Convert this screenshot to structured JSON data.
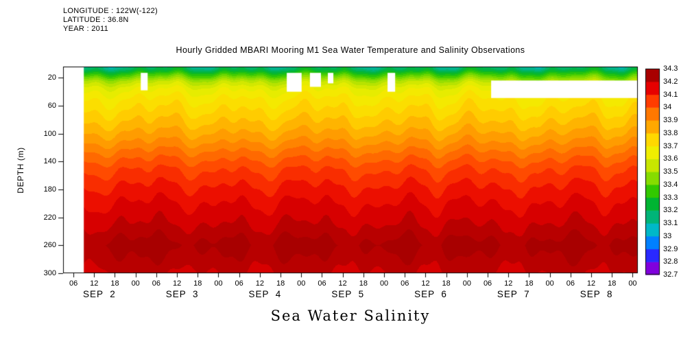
{
  "header": {
    "longitude": "LONGITUDE : 122W(-122)",
    "latitude": "LATITUDE : 36.8N",
    "year": "YEAR : 2011"
  },
  "title": "Hourly Gridded MBARI Mooring M1 Sea Water Temperature and Salinity Observations",
  "footer_label": "Sea Water Salinity",
  "chart_data": {
    "type": "heatmap",
    "title": "Hourly Gridded MBARI Mooring M1 Sea Water Temperature and Salinity Observations",
    "xlabel": "Sea Water Salinity",
    "ylabel": "DEPTH (m)",
    "ylim": [
      4,
      300
    ],
    "y_ticks": [
      20,
      60,
      100,
      140,
      180,
      220,
      260,
      300
    ],
    "t_start_hour": 3,
    "t_end_hour": 169.5,
    "x_hour_tick_labels": [
      "06",
      "12",
      "18",
      "00"
    ],
    "x_hour_tick_start": 6,
    "x_hour_tick_step": 6,
    "x_hour_tick_count": 28,
    "days": [
      "SEP  2",
      "SEP  3",
      "SEP  4",
      "SEP  5",
      "SEP  6",
      "SEP  7",
      "SEP  8"
    ],
    "grid": false,
    "legend_position": "right-colorbar",
    "colorbar": {
      "ticks": [
        34.3,
        34.2,
        34.1,
        34,
        33.9,
        33.8,
        33.7,
        33.6,
        33.5,
        33.4,
        33.3,
        33.2,
        33.1,
        33,
        32.9,
        32.8,
        32.7
      ],
      "vmin": 32.7,
      "vmax": 34.3,
      "step": 0.1,
      "colors_bottom_to_top": [
        "#8000dd",
        "#2929ff",
        "#0080ff",
        "#00b8c8",
        "#00b478",
        "#00b432",
        "#32c800",
        "#86dc00",
        "#c8e600",
        "#f0ee00",
        "#ffd800",
        "#ffa800",
        "#ff7800",
        "#ff3c00",
        "#e60000",
        "#a80000"
      ]
    },
    "profile": {
      "depths": [
        0,
        8,
        15,
        25,
        35,
        50,
        70,
        90,
        110,
        130,
        150,
        175,
        200,
        225,
        245,
        260,
        275,
        300
      ],
      "salinity": [
        33.08,
        33.15,
        33.3,
        33.48,
        33.58,
        33.65,
        33.71,
        33.77,
        33.84,
        33.92,
        33.99,
        34.05,
        34.1,
        34.14,
        34.18,
        34.22,
        34.19,
        34.15
      ]
    },
    "amplitude": {
      "depths": [
        0,
        20,
        40,
        80,
        150,
        230,
        260,
        300
      ],
      "values": [
        0.12,
        0.09,
        0.06,
        0.05,
        0.04,
        0.035,
        0.05,
        0.03
      ]
    },
    "contour_interval": 0.05,
    "missing_data_regions": [
      {
        "t0": 3,
        "t1": 9,
        "d0": 4,
        "d1": 300
      },
      {
        "t0": 25.5,
        "t1": 27.5,
        "d0": 13,
        "d1": 38
      },
      {
        "t0": 67.8,
        "t1": 72.1,
        "d0": 13,
        "d1": 40
      },
      {
        "t0": 74.5,
        "t1": 77.7,
        "d0": 13,
        "d1": 33
      },
      {
        "t0": 79.7,
        "t1": 81.3,
        "d0": 13,
        "d1": 28
      },
      {
        "t0": 97.0,
        "t1": 99.2,
        "d0": 13,
        "d1": 40
      },
      {
        "t0": 127,
        "t1": 169.5,
        "d0": 24,
        "d1": 49
      }
    ]
  }
}
